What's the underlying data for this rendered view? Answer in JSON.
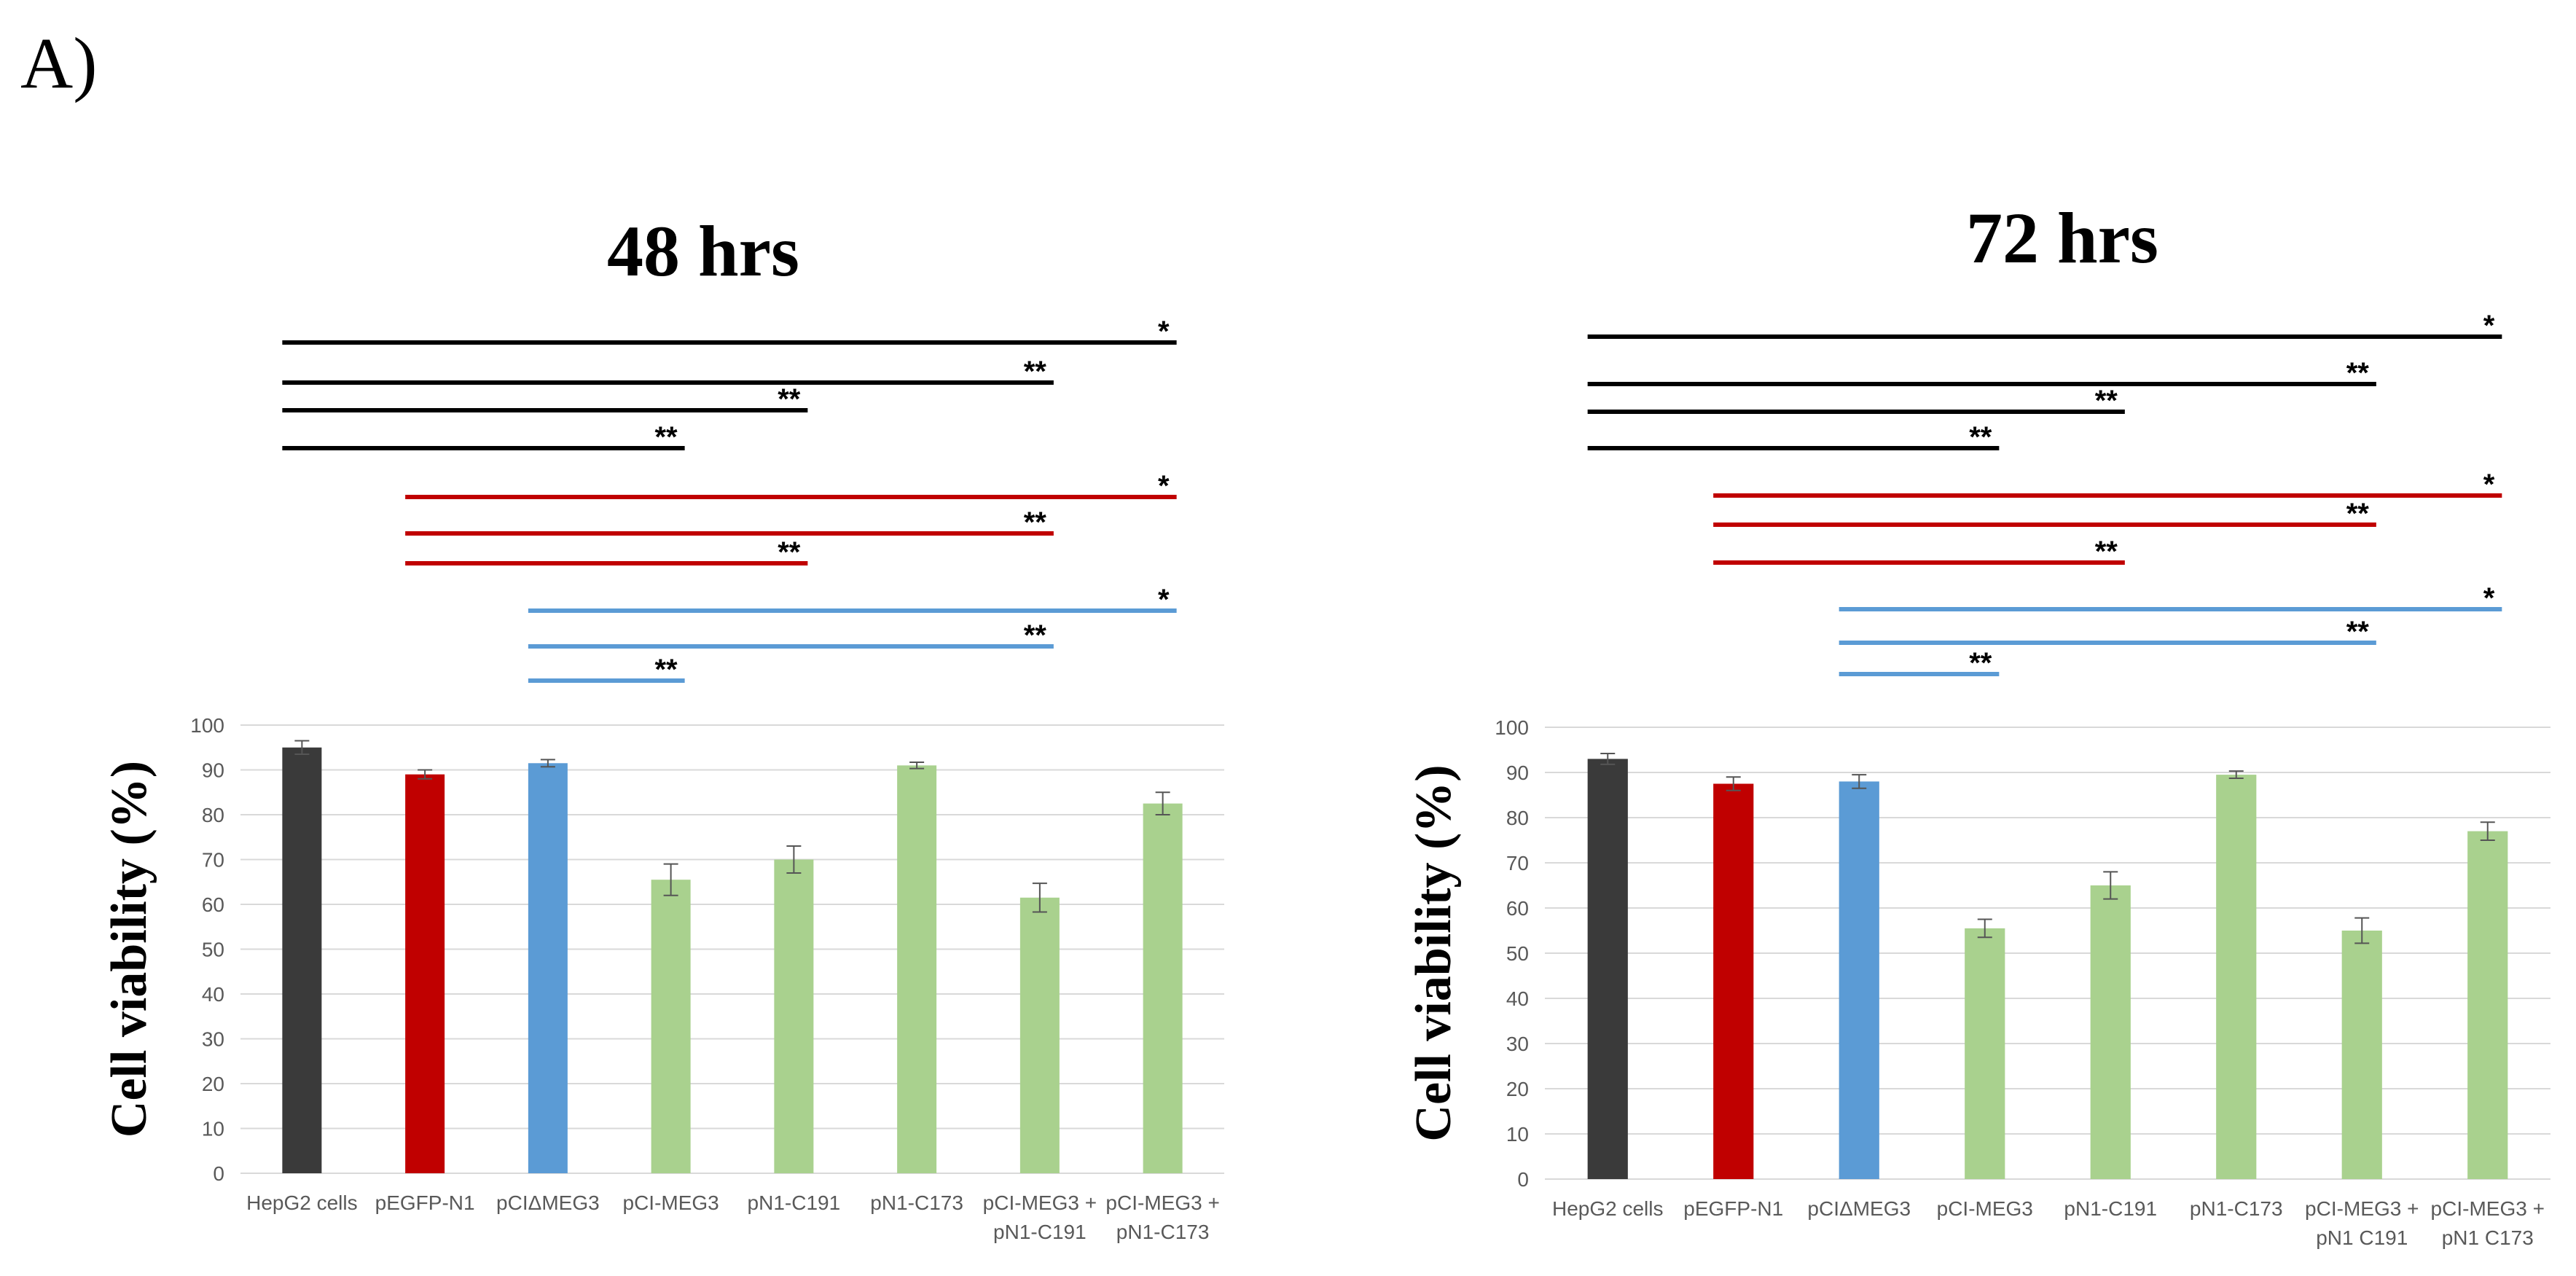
{
  "figure_label": "A)",
  "colors": {
    "dark": "#3a3a3a",
    "red": "#c00000",
    "blue": "#5b9bd5",
    "green": "#a9d18e",
    "sig_black": "#000000",
    "sig_red": "#c00000",
    "sig_blue": "#5b9bd5",
    "grid": "#d9d9d9",
    "tick_text": "#595959"
  },
  "chart_data": [
    {
      "type": "bar",
      "title": "48 hrs",
      "xlabel": "",
      "ylabel": "Cell viability (%)",
      "ylim": [
        0,
        100
      ],
      "yticks": [
        "0",
        "10",
        "20",
        "30",
        "40",
        "50",
        "60",
        "70",
        "80",
        "90",
        "100"
      ],
      "grid": true,
      "categories": [
        "HepG2 cells",
        "pEGFP-N1",
        "pCIΔMEG3",
        "pCI-MEG3",
        "pN1-C191",
        "pN1-C173",
        "pCI-MEG3 + pN1-C191",
        "pCI-MEG3 + pN1-C173"
      ],
      "category_lines": [
        [
          "HepG2 cells"
        ],
        [
          "pEGFP-N1"
        ],
        [
          "pCIΔMEG3"
        ],
        [
          "pCI-MEG3"
        ],
        [
          "pN1-C191"
        ],
        [
          "pN1-C173"
        ],
        [
          "pCI-MEG3 +",
          "pN1-C191"
        ],
        [
          "pCI-MEG3 +",
          "pN1-C173"
        ]
      ],
      "values": [
        95,
        89,
        91.5,
        65.5,
        70,
        91,
        61.5,
        82.5
      ],
      "errors": [
        1.5,
        1,
        0.8,
        3.5,
        3,
        0.7,
        3.2,
        2.5
      ],
      "bar_colors": [
        "dark",
        "red",
        "blue",
        "green",
        "green",
        "green",
        "green",
        "green"
      ],
      "significance": [
        {
          "from": 0,
          "to": 7,
          "label": "*",
          "color": "sig_black"
        },
        {
          "from": 0,
          "to": 6,
          "label": "**",
          "color": "sig_black"
        },
        {
          "from": 0,
          "to": 4,
          "label": "**",
          "color": "sig_black"
        },
        {
          "from": 0,
          "to": 3,
          "label": "**",
          "color": "sig_black"
        },
        {
          "from": 1,
          "to": 7,
          "label": "*",
          "color": "sig_red"
        },
        {
          "from": 1,
          "to": 6,
          "label": "**",
          "color": "sig_red"
        },
        {
          "from": 1,
          "to": 4,
          "label": "**",
          "color": "sig_red"
        },
        {
          "from": 2,
          "to": 7,
          "label": "*",
          "color": "sig_blue"
        },
        {
          "from": 2,
          "to": 6,
          "label": "**",
          "color": "sig_blue"
        },
        {
          "from": 2,
          "to": 3,
          "label": "**",
          "color": "sig_blue"
        }
      ]
    },
    {
      "type": "bar",
      "title": "72 hrs",
      "xlabel": "",
      "ylabel": "Cell viability (%)",
      "ylim": [
        0,
        100
      ],
      "yticks": [
        "0",
        "10",
        "20",
        "30",
        "40",
        "50",
        "60",
        "70",
        "80",
        "90",
        "100"
      ],
      "grid": true,
      "categories": [
        "HepG2 cells",
        "pEGFP-N1",
        "pCIΔMEG3",
        "pCI-MEG3",
        "pN1-C191",
        "pN1-C173",
        "pCI-MEG3 + pN1 C191",
        "pCI-MEG3 + pN1 C173"
      ],
      "category_lines": [
        [
          "HepG2 cells"
        ],
        [
          "pEGFP-N1"
        ],
        [
          "pCIΔMEG3"
        ],
        [
          "pCI-MEG3"
        ],
        [
          "pN1-C191"
        ],
        [
          "pN1-C173"
        ],
        [
          "pCI-MEG3 +",
          "pN1 C191"
        ],
        [
          "pCI-MEG3 +",
          "pN1 C173"
        ]
      ],
      "values": [
        93,
        87.5,
        88,
        55.5,
        65,
        89.5,
        55,
        77
      ],
      "errors": [
        1.2,
        1.5,
        1.5,
        2,
        3,
        0.8,
        2.8,
        2
      ],
      "bar_colors": [
        "dark",
        "red",
        "blue",
        "green",
        "green",
        "green",
        "green",
        "green"
      ],
      "significance": [
        {
          "from": 0,
          "to": 7,
          "label": "*",
          "color": "sig_black"
        },
        {
          "from": 0,
          "to": 6,
          "label": "**",
          "color": "sig_black"
        },
        {
          "from": 0,
          "to": 4,
          "label": "**",
          "color": "sig_black"
        },
        {
          "from": 0,
          "to": 3,
          "label": "**",
          "color": "sig_black"
        },
        {
          "from": 1,
          "to": 7,
          "label": "*",
          "color": "sig_red"
        },
        {
          "from": 1,
          "to": 6,
          "label": "**",
          "color": "sig_red"
        },
        {
          "from": 1,
          "to": 4,
          "label": "**",
          "color": "sig_red"
        },
        {
          "from": 2,
          "to": 7,
          "label": "*",
          "color": "sig_blue"
        },
        {
          "from": 2,
          "to": 6,
          "label": "**",
          "color": "sig_blue"
        },
        {
          "from": 2,
          "to": 3,
          "label": "**",
          "color": "sig_blue"
        }
      ]
    }
  ]
}
